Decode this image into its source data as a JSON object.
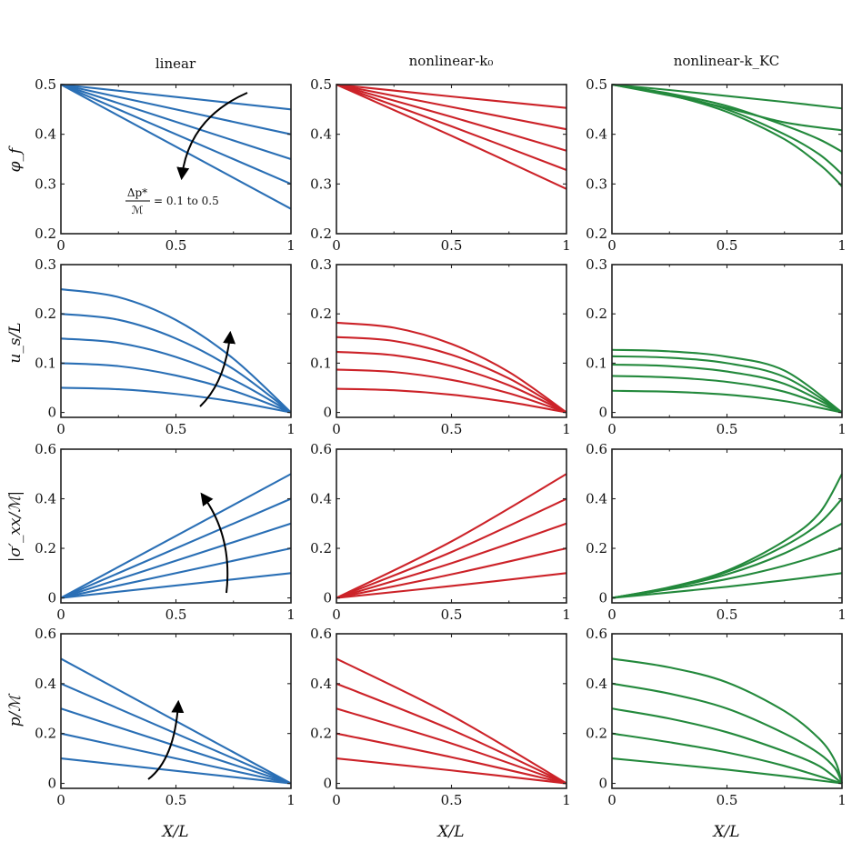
{
  "figure": {
    "columns": [
      {
        "title": "linear",
        "color": "#2a6fb5"
      },
      {
        "title": "nonlinear-k₀",
        "color": "#cc2228"
      },
      {
        "title": "nonlinear-k_KC",
        "color": "#23893c"
      }
    ],
    "xlabel": "X/L",
    "rows": [
      {
        "ylabel": "φ_f"
      },
      {
        "ylabel": "u_s/L"
      },
      {
        "ylabel": "|σ′_xx/ℳ|"
      },
      {
        "ylabel": "p/ℳ"
      }
    ],
    "annotation": {
      "numerator": "Δp*",
      "denominator": "ℳ",
      "text": "= 0.1 to 0.5"
    }
  },
  "chart_data": [
    {
      "type": "line",
      "row": 0,
      "col": 0,
      "title": "linear",
      "ylabel": "φ_f",
      "xlabel": "",
      "xlim": [
        0,
        1
      ],
      "ylim": [
        0.2,
        0.5
      ],
      "xticks": [
        "0",
        "0.5",
        "1"
      ],
      "yticks": [
        "0.2",
        "0.3",
        "0.4",
        "0.5"
      ],
      "series": [
        {
          "name": "0.1",
          "x": [
            0,
            1
          ],
          "y": [
            0.5,
            0.45
          ]
        },
        {
          "name": "0.2",
          "x": [
            0,
            1
          ],
          "y": [
            0.5,
            0.4
          ]
        },
        {
          "name": "0.3",
          "x": [
            0,
            1
          ],
          "y": [
            0.5,
            0.35
          ]
        },
        {
          "name": "0.4",
          "x": [
            0,
            1
          ],
          "y": [
            0.5,
            0.3
          ]
        },
        {
          "name": "0.5",
          "x": [
            0,
            1
          ],
          "y": [
            0.5,
            0.25
          ]
        }
      ]
    },
    {
      "type": "line",
      "row": 0,
      "col": 1,
      "title": "nonlinear-k₀",
      "ylabel": "",
      "xlabel": "",
      "xlim": [
        0,
        1
      ],
      "ylim": [
        0.2,
        0.5
      ],
      "xticks": [
        "0",
        "0.5",
        "1"
      ],
      "yticks": [
        "0.2",
        "0.3",
        "0.4",
        "0.5"
      ],
      "series": [
        {
          "name": "0.1",
          "x": [
            0,
            0.5,
            1
          ],
          "y": [
            0.5,
            0.476,
            0.453
          ]
        },
        {
          "name": "0.2",
          "x": [
            0,
            0.5,
            1
          ],
          "y": [
            0.5,
            0.455,
            0.41
          ]
        },
        {
          "name": "0.3",
          "x": [
            0,
            0.5,
            1
          ],
          "y": [
            0.5,
            0.435,
            0.367
          ]
        },
        {
          "name": "0.4",
          "x": [
            0,
            0.5,
            1
          ],
          "y": [
            0.5,
            0.416,
            0.328
          ]
        },
        {
          "name": "0.5",
          "x": [
            0,
            0.5,
            1
          ],
          "y": [
            0.5,
            0.397,
            0.29
          ]
        }
      ]
    },
    {
      "type": "line",
      "row": 0,
      "col": 2,
      "title": "nonlinear-k_KC",
      "ylabel": "",
      "xlabel": "",
      "xlim": [
        0,
        1
      ],
      "ylim": [
        0.2,
        0.5
      ],
      "xticks": [
        "0",
        "0.5",
        "1"
      ],
      "yticks": [
        "0.2",
        "0.3",
        "0.4",
        "0.5"
      ],
      "series": [
        {
          "name": "0.1",
          "x": [
            0,
            0.25,
            0.5,
            0.75,
            1
          ],
          "y": [
            0.5,
            0.489,
            0.477,
            0.465,
            0.452
          ]
        },
        {
          "name": "0.2",
          "x": [
            0,
            0.25,
            0.5,
            0.75,
            1
          ],
          "y": [
            0.5,
            0.478,
            0.453,
            0.424,
            0.408
          ]
        },
        {
          "name": "0.3",
          "x": [
            0,
            0.25,
            0.5,
            0.75,
            0.9,
            1
          ],
          "y": [
            0.5,
            0.482,
            0.457,
            0.418,
            0.39,
            0.365
          ]
        },
        {
          "name": "0.4",
          "x": [
            0,
            0.25,
            0.5,
            0.75,
            0.9,
            1
          ],
          "y": [
            0.5,
            0.48,
            0.45,
            0.4,
            0.36,
            0.32
          ]
        },
        {
          "name": "0.5",
          "x": [
            0,
            0.25,
            0.5,
            0.75,
            0.9,
            0.97,
            1
          ],
          "y": [
            0.5,
            0.479,
            0.445,
            0.39,
            0.34,
            0.31,
            0.295
          ]
        }
      ]
    },
    {
      "type": "line",
      "row": 1,
      "col": 0,
      "title": "",
      "ylabel": "u_s/L",
      "xlabel": "",
      "xlim": [
        0,
        1
      ],
      "ylim": [
        -0.01,
        0.3
      ],
      "xticks": [
        "0",
        "0.5",
        "1"
      ],
      "yticks": [
        "0",
        "0.1",
        "0.2",
        "0.3"
      ],
      "series": [
        {
          "name": "0.1",
          "x": [
            0,
            0.25,
            0.5,
            0.75,
            1
          ],
          "y": [
            0.05,
            0.047,
            0.0375,
            0.022,
            0
          ]
        },
        {
          "name": "0.2",
          "x": [
            0,
            0.25,
            0.5,
            0.75,
            1
          ],
          "y": [
            0.1,
            0.094,
            0.075,
            0.044,
            0
          ]
        },
        {
          "name": "0.3",
          "x": [
            0,
            0.25,
            0.5,
            0.75,
            1
          ],
          "y": [
            0.15,
            0.141,
            0.1125,
            0.066,
            0
          ]
        },
        {
          "name": "0.4",
          "x": [
            0,
            0.25,
            0.5,
            0.75,
            1
          ],
          "y": [
            0.2,
            0.188,
            0.15,
            0.088,
            0
          ]
        },
        {
          "name": "0.5",
          "x": [
            0,
            0.25,
            0.5,
            0.75,
            1
          ],
          "y": [
            0.25,
            0.234,
            0.1875,
            0.109,
            0
          ]
        }
      ]
    },
    {
      "type": "line",
      "row": 1,
      "col": 1,
      "title": "",
      "ylabel": "",
      "xlabel": "",
      "xlim": [
        0,
        1
      ],
      "ylim": [
        -0.01,
        0.3
      ],
      "xticks": [
        "0",
        "0.5",
        "1"
      ],
      "yticks": [
        "0",
        "0.1",
        "0.2",
        "0.3"
      ],
      "series": [
        {
          "name": "0.1",
          "x": [
            0,
            0.25,
            0.5,
            0.75,
            1
          ],
          "y": [
            0.048,
            0.045,
            0.036,
            0.021,
            0
          ]
        },
        {
          "name": "0.2",
          "x": [
            0,
            0.25,
            0.5,
            0.75,
            1
          ],
          "y": [
            0.087,
            0.082,
            0.066,
            0.039,
            0
          ]
        },
        {
          "name": "0.3",
          "x": [
            0,
            0.25,
            0.5,
            0.75,
            1
          ],
          "y": [
            0.123,
            0.116,
            0.094,
            0.055,
            0
          ]
        },
        {
          "name": "0.4",
          "x": [
            0,
            0.25,
            0.5,
            0.75,
            1
          ],
          "y": [
            0.153,
            0.145,
            0.117,
            0.069,
            0
          ]
        },
        {
          "name": "0.5",
          "x": [
            0,
            0.25,
            0.5,
            0.75,
            1
          ],
          "y": [
            0.182,
            0.172,
            0.139,
            0.082,
            0
          ]
        }
      ]
    },
    {
      "type": "line",
      "row": 1,
      "col": 2,
      "title": "",
      "ylabel": "",
      "xlabel": "",
      "xlim": [
        0,
        1
      ],
      "ylim": [
        -0.01,
        0.3
      ],
      "xticks": [
        "0",
        "0.5",
        "1"
      ],
      "yticks": [
        "0",
        "0.1",
        "0.2",
        "0.3"
      ],
      "series": [
        {
          "name": "0.1",
          "x": [
            0,
            0.25,
            0.5,
            0.75,
            1
          ],
          "y": [
            0.044,
            0.042,
            0.036,
            0.023,
            0
          ]
        },
        {
          "name": "0.2",
          "x": [
            0,
            0.25,
            0.5,
            0.75,
            1
          ],
          "y": [
            0.074,
            0.071,
            0.062,
            0.042,
            0
          ]
        },
        {
          "name": "0.3",
          "x": [
            0,
            0.25,
            0.5,
            0.75,
            1
          ],
          "y": [
            0.097,
            0.094,
            0.083,
            0.058,
            0
          ]
        },
        {
          "name": "0.4",
          "x": [
            0,
            0.25,
            0.5,
            0.75,
            1
          ],
          "y": [
            0.114,
            0.111,
            0.1,
            0.072,
            0
          ]
        },
        {
          "name": "0.5",
          "x": [
            0,
            0.25,
            0.5,
            0.75,
            1
          ],
          "y": [
            0.127,
            0.124,
            0.113,
            0.085,
            0
          ]
        }
      ]
    },
    {
      "type": "line",
      "row": 2,
      "col": 0,
      "title": "",
      "ylabel": "|σ′_xx/ℳ|",
      "xlabel": "",
      "xlim": [
        0,
        1
      ],
      "ylim": [
        -0.02,
        0.6
      ],
      "xticks": [
        "0",
        "0.5",
        "1"
      ],
      "yticks": [
        "0",
        "0.2",
        "0.4",
        "0.6"
      ],
      "series": [
        {
          "name": "0.1",
          "x": [
            0,
            1
          ],
          "y": [
            0,
            0.1
          ]
        },
        {
          "name": "0.2",
          "x": [
            0,
            1
          ],
          "y": [
            0,
            0.2
          ]
        },
        {
          "name": "0.3",
          "x": [
            0,
            1
          ],
          "y": [
            0,
            0.3
          ]
        },
        {
          "name": "0.4",
          "x": [
            0,
            1
          ],
          "y": [
            0,
            0.4
          ]
        },
        {
          "name": "0.5",
          "x": [
            0,
            1
          ],
          "y": [
            0,
            0.5
          ]
        }
      ]
    },
    {
      "type": "line",
      "row": 2,
      "col": 1,
      "title": "",
      "ylabel": "",
      "xlabel": "",
      "xlim": [
        0,
        1
      ],
      "ylim": [
        -0.02,
        0.6
      ],
      "xticks": [
        "0",
        "0.5",
        "1"
      ],
      "yticks": [
        "0",
        "0.2",
        "0.4",
        "0.6"
      ],
      "series": [
        {
          "name": "0.1",
          "x": [
            0,
            0.5,
            1
          ],
          "y": [
            0,
            0.048,
            0.1
          ]
        },
        {
          "name": "0.2",
          "x": [
            0,
            0.5,
            1
          ],
          "y": [
            0,
            0.095,
            0.2
          ]
        },
        {
          "name": "0.3",
          "x": [
            0,
            0.5,
            1
          ],
          "y": [
            0,
            0.14,
            0.3
          ]
        },
        {
          "name": "0.4",
          "x": [
            0,
            0.5,
            1
          ],
          "y": [
            0,
            0.185,
            0.4
          ]
        },
        {
          "name": "0.5",
          "x": [
            0,
            0.5,
            1
          ],
          "y": [
            0,
            0.228,
            0.5
          ]
        }
      ]
    },
    {
      "type": "line",
      "row": 2,
      "col": 2,
      "title": "",
      "ylabel": "",
      "xlabel": "",
      "xlim": [
        0,
        1
      ],
      "ylim": [
        -0.02,
        0.6
      ],
      "xticks": [
        "0",
        "0.5",
        "1"
      ],
      "yticks": [
        "0",
        "0.2",
        "0.4",
        "0.6"
      ],
      "series": [
        {
          "name": "0.1",
          "x": [
            0,
            0.25,
            0.5,
            0.75,
            1
          ],
          "y": [
            0,
            0.022,
            0.045,
            0.071,
            0.1
          ]
        },
        {
          "name": "0.2",
          "x": [
            0,
            0.25,
            0.5,
            0.75,
            1
          ],
          "y": [
            0,
            0.035,
            0.076,
            0.13,
            0.2
          ]
        },
        {
          "name": "0.3",
          "x": [
            0,
            0.25,
            0.5,
            0.75,
            1
          ],
          "y": [
            0,
            0.04,
            0.095,
            0.18,
            0.3
          ]
        },
        {
          "name": "0.4",
          "x": [
            0,
            0.25,
            0.5,
            0.75,
            0.9,
            1
          ],
          "y": [
            0,
            0.042,
            0.105,
            0.21,
            0.3,
            0.4
          ]
        },
        {
          "name": "0.5",
          "x": [
            0,
            0.25,
            0.5,
            0.75,
            0.9,
            1
          ],
          "y": [
            0,
            0.043,
            0.11,
            0.23,
            0.34,
            0.5
          ]
        }
      ]
    },
    {
      "type": "line",
      "row": 3,
      "col": 0,
      "title": "",
      "ylabel": "p/ℳ",
      "xlabel": "X/L",
      "xlim": [
        0,
        1
      ],
      "ylim": [
        -0.02,
        0.6
      ],
      "xticks": [
        "0",
        "0.5",
        "1"
      ],
      "yticks": [
        "0",
        "0.2",
        "0.4",
        "0.6"
      ],
      "series": [
        {
          "name": "0.1",
          "x": [
            0,
            1
          ],
          "y": [
            0.1,
            0
          ]
        },
        {
          "name": "0.2",
          "x": [
            0,
            1
          ],
          "y": [
            0.2,
            0
          ]
        },
        {
          "name": "0.3",
          "x": [
            0,
            1
          ],
          "y": [
            0.3,
            0
          ]
        },
        {
          "name": "0.4",
          "x": [
            0,
            1
          ],
          "y": [
            0.4,
            0
          ]
        },
        {
          "name": "0.5",
          "x": [
            0,
            1
          ],
          "y": [
            0.5,
            0
          ]
        }
      ]
    },
    {
      "type": "line",
      "row": 3,
      "col": 1,
      "title": "",
      "ylabel": "",
      "xlabel": "X/L",
      "xlim": [
        0,
        1
      ],
      "ylim": [
        -0.02,
        0.6
      ],
      "xticks": [
        "0",
        "0.5",
        "1"
      ],
      "yticks": [
        "0",
        "0.2",
        "0.4",
        "0.6"
      ],
      "series": [
        {
          "name": "0.1",
          "x": [
            0,
            0.5,
            1
          ],
          "y": [
            0.1,
            0.052,
            0
          ]
        },
        {
          "name": "0.2",
          "x": [
            0,
            0.5,
            1
          ],
          "y": [
            0.2,
            0.105,
            0
          ]
        },
        {
          "name": "0.3",
          "x": [
            0,
            0.5,
            1
          ],
          "y": [
            0.3,
            0.16,
            0
          ]
        },
        {
          "name": "0.4",
          "x": [
            0,
            0.5,
            1
          ],
          "y": [
            0.4,
            0.215,
            0
          ]
        },
        {
          "name": "0.5",
          "x": [
            0,
            0.5,
            1
          ],
          "y": [
            0.5,
            0.272,
            0
          ]
        }
      ]
    },
    {
      "type": "line",
      "row": 3,
      "col": 2,
      "title": "",
      "ylabel": "",
      "xlabel": "X/L",
      "xlim": [
        0,
        1
      ],
      "ylim": [
        -0.02,
        0.6
      ],
      "xticks": [
        "0",
        "0.5",
        "1"
      ],
      "yticks": [
        "0",
        "0.2",
        "0.4",
        "0.6"
      ],
      "series": [
        {
          "name": "0.1",
          "x": [
            0,
            0.25,
            0.5,
            0.75,
            1
          ],
          "y": [
            0.1,
            0.078,
            0.055,
            0.029,
            0
          ]
        },
        {
          "name": "0.2",
          "x": [
            0,
            0.25,
            0.5,
            0.75,
            1
          ],
          "y": [
            0.2,
            0.165,
            0.124,
            0.07,
            0
          ]
        },
        {
          "name": "0.3",
          "x": [
            0,
            0.25,
            0.5,
            0.75,
            0.9,
            1
          ],
          "y": [
            0.3,
            0.26,
            0.205,
            0.128,
            0.07,
            0
          ]
        },
        {
          "name": "0.4",
          "x": [
            0,
            0.25,
            0.5,
            0.75,
            0.9,
            0.97,
            1
          ],
          "y": [
            0.4,
            0.36,
            0.3,
            0.2,
            0.12,
            0.06,
            0
          ]
        },
        {
          "name": "0.5",
          "x": [
            0,
            0.25,
            0.5,
            0.75,
            0.9,
            0.97,
            1
          ],
          "y": [
            0.5,
            0.465,
            0.405,
            0.29,
            0.18,
            0.09,
            0
          ]
        }
      ]
    }
  ]
}
